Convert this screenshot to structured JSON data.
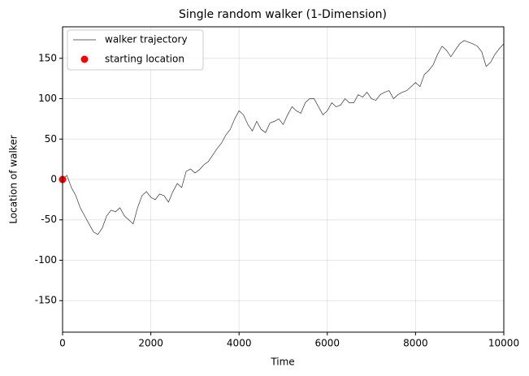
{
  "chart_data": {
    "type": "line",
    "title": "Single random walker (1-Dimension)",
    "x_label": "Time",
    "y_label": "Location of walker",
    "xlim": [
      0,
      10000
    ],
    "ylim": [
      -189,
      189
    ],
    "xticks": [
      0,
      2000,
      4000,
      6000,
      8000,
      10000
    ],
    "yticks": [
      -150,
      -100,
      -50,
      0,
      50,
      100,
      150
    ],
    "grid": true,
    "legend": "upper left",
    "x": [
      0,
      100,
      200,
      300,
      400,
      500,
      600,
      700,
      800,
      900,
      1000,
      1100,
      1200,
      1300,
      1400,
      1500,
      1600,
      1700,
      1800,
      1900,
      2000,
      2100,
      2200,
      2300,
      2400,
      2500,
      2600,
      2700,
      2800,
      2900,
      3000,
      3100,
      3200,
      3300,
      3400,
      3500,
      3600,
      3700,
      3800,
      3900,
      4000,
      4100,
      4200,
      4300,
      4400,
      4500,
      4600,
      4700,
      4800,
      4900,
      5000,
      5100,
      5200,
      5300,
      5400,
      5500,
      5600,
      5700,
      5800,
      5900,
      6000,
      6100,
      6200,
      6300,
      6400,
      6500,
      6600,
      6700,
      6800,
      6900,
      7000,
      7100,
      7200,
      7300,
      7400,
      7500,
      7600,
      7700,
      7800,
      7900,
      8000,
      8100,
      8200,
      8300,
      8400,
      8500,
      8600,
      8700,
      8800,
      8900,
      9000,
      9100,
      9200,
      9300,
      9400,
      9500,
      9600,
      9700,
      9800,
      9900,
      10000
    ],
    "series": [
      {
        "name": "walker trajectory",
        "color": "#333333",
        "values": [
          0,
          5,
          -10,
          -20,
          -35,
          -45,
          -55,
          -65,
          -68,
          -60,
          -45,
          -38,
          -40,
          -35,
          -45,
          -50,
          -55,
          -35,
          -20,
          -15,
          -22,
          -25,
          -18,
          -20,
          -28,
          -15,
          -5,
          -10,
          10,
          13,
          8,
          12,
          18,
          22,
          30,
          38,
          45,
          55,
          62,
          75,
          85,
          80,
          68,
          60,
          72,
          62,
          58,
          70,
          72,
          75,
          68,
          80,
          90,
          85,
          82,
          95,
          100,
          100,
          90,
          80,
          85,
          95,
          90,
          92,
          100,
          95,
          95,
          105,
          102,
          108,
          100,
          98,
          105,
          108,
          110,
          100,
          105,
          108,
          110,
          115,
          120,
          115,
          130,
          135,
          142,
          155,
          165,
          160,
          152,
          160,
          168,
          172,
          170,
          168,
          165,
          158,
          140,
          145,
          155,
          162,
          168
        ]
      },
      {
        "name": "starting location",
        "type": "scatter",
        "color": "#ff0000",
        "x": [
          0
        ],
        "values": [
          0
        ]
      }
    ]
  }
}
